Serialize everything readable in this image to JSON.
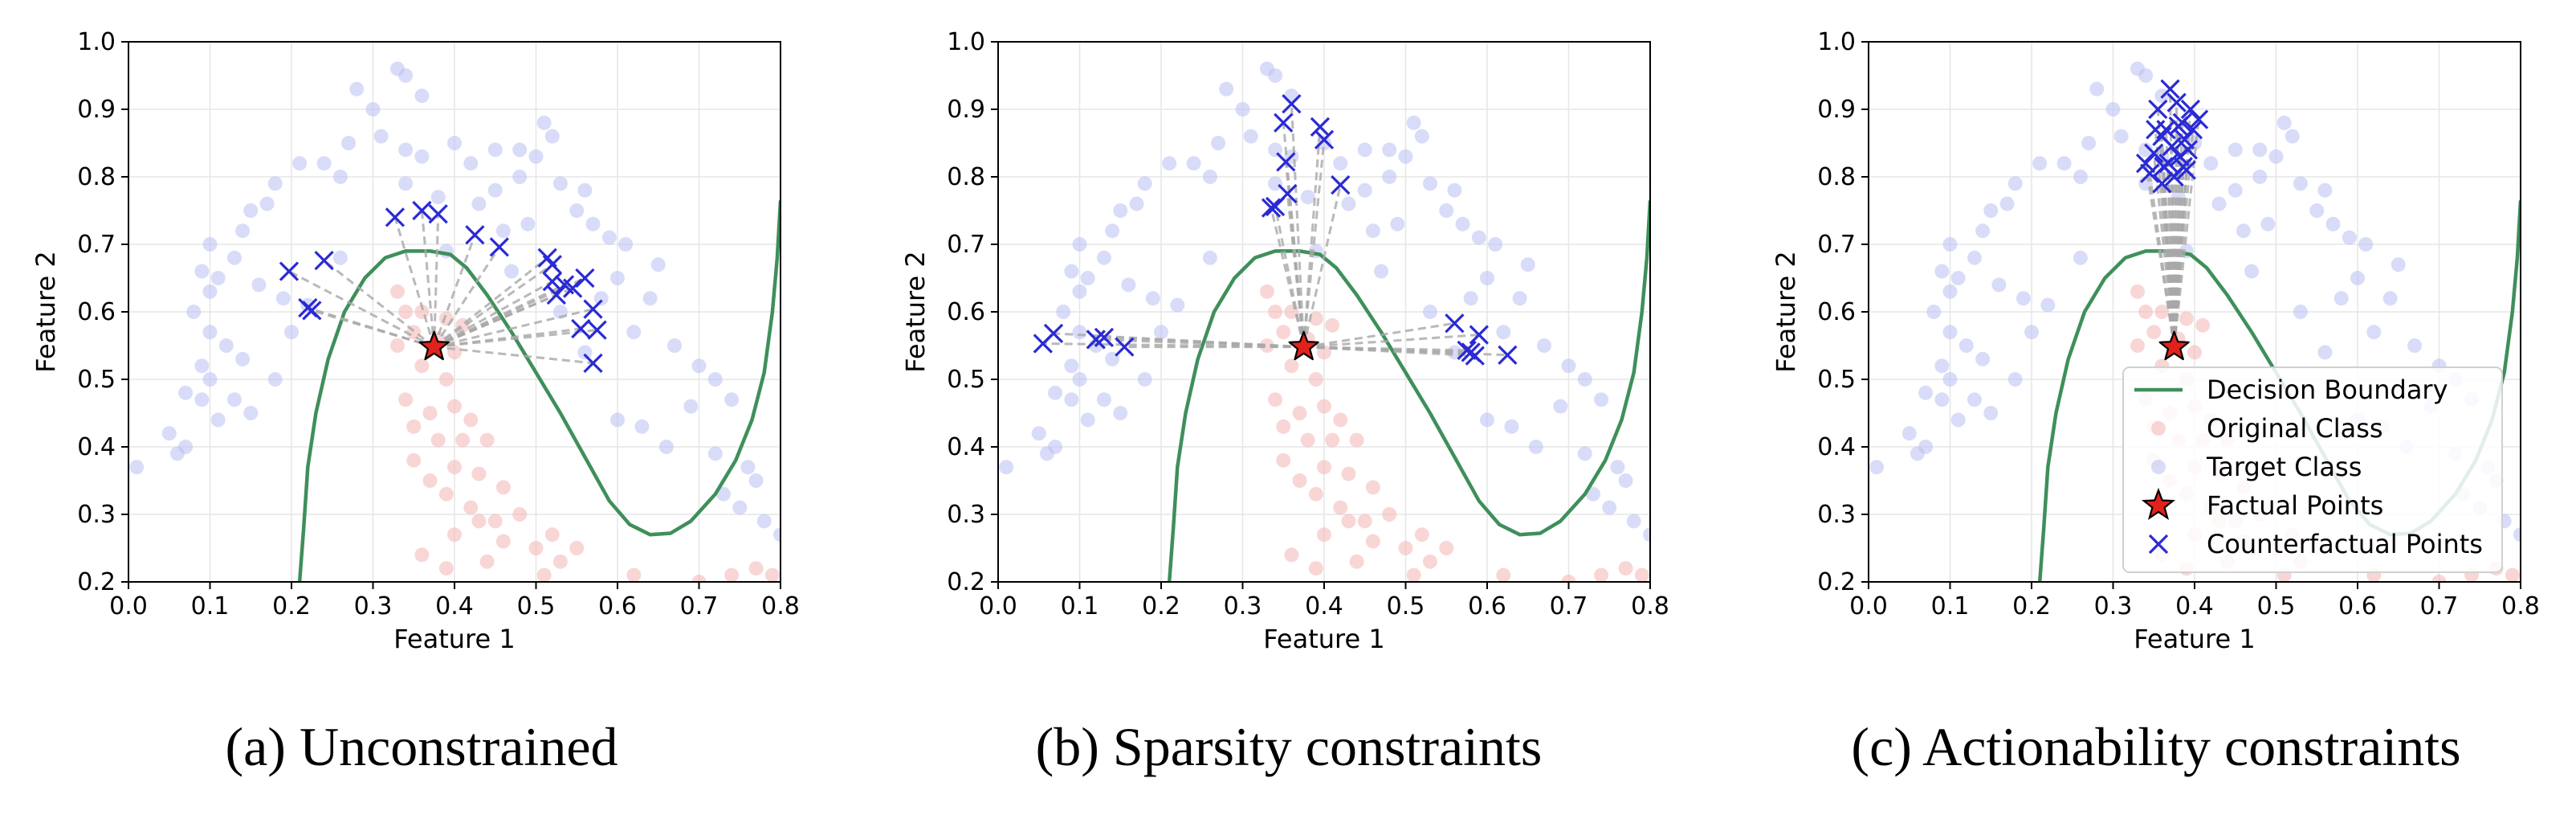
{
  "captions": [
    "(a) Unconstrained",
    "(b) Sparsity constraints",
    "(c) Actionability constraints"
  ],
  "colors": {
    "boundary": "#3f8f5a",
    "original": "#f4b4b4",
    "target": "#b9bff2",
    "factual": "#e3211c",
    "counterfactual": "#2a2ad6",
    "connector": "#a8a8a8"
  },
  "shared": {
    "xlabel": "Feature 1",
    "ylabel": "Feature 2",
    "xlim": [
      0.0,
      0.8
    ],
    "ylim": [
      0.2,
      1.0
    ],
    "xticks": [
      "0.0",
      "0.1",
      "0.2",
      "0.3",
      "0.4",
      "0.5",
      "0.6",
      "0.7",
      "0.8"
    ],
    "yticks": [
      "0.2",
      "0.3",
      "0.4",
      "0.5",
      "0.6",
      "0.7",
      "0.8",
      "0.9",
      "1.0"
    ],
    "grid": true,
    "boundary": [
      [
        0.21,
        0.2
      ],
      [
        0.215,
        0.28
      ],
      [
        0.22,
        0.37
      ],
      [
        0.23,
        0.45
      ],
      [
        0.245,
        0.53
      ],
      [
        0.265,
        0.6
      ],
      [
        0.29,
        0.65
      ],
      [
        0.315,
        0.68
      ],
      [
        0.34,
        0.69
      ],
      [
        0.37,
        0.69
      ],
      [
        0.395,
        0.685
      ],
      [
        0.415,
        0.665
      ],
      [
        0.44,
        0.625
      ],
      [
        0.47,
        0.57
      ],
      [
        0.5,
        0.51
      ],
      [
        0.53,
        0.45
      ],
      [
        0.56,
        0.385
      ],
      [
        0.59,
        0.32
      ],
      [
        0.615,
        0.285
      ],
      [
        0.64,
        0.27
      ],
      [
        0.665,
        0.272
      ],
      [
        0.69,
        0.29
      ],
      [
        0.72,
        0.33
      ],
      [
        0.745,
        0.38
      ],
      [
        0.765,
        0.44
      ],
      [
        0.78,
        0.51
      ],
      [
        0.79,
        0.6
      ],
      [
        0.796,
        0.68
      ],
      [
        0.8,
        0.765
      ]
    ],
    "original_class": [
      [
        0.33,
        0.63
      ],
      [
        0.34,
        0.6
      ],
      [
        0.35,
        0.57
      ],
      [
        0.36,
        0.6
      ],
      [
        0.39,
        0.59
      ],
      [
        0.41,
        0.58
      ],
      [
        0.38,
        0.56
      ],
      [
        0.4,
        0.54
      ],
      [
        0.33,
        0.55
      ],
      [
        0.36,
        0.52
      ],
      [
        0.39,
        0.5
      ],
      [
        0.34,
        0.47
      ],
      [
        0.37,
        0.45
      ],
      [
        0.4,
        0.46
      ],
      [
        0.42,
        0.44
      ],
      [
        0.35,
        0.43
      ],
      [
        0.38,
        0.41
      ],
      [
        0.41,
        0.41
      ],
      [
        0.44,
        0.41
      ],
      [
        0.35,
        0.38
      ],
      [
        0.37,
        0.35
      ],
      [
        0.4,
        0.37
      ],
      [
        0.43,
        0.36
      ],
      [
        0.46,
        0.34
      ],
      [
        0.39,
        0.33
      ],
      [
        0.42,
        0.31
      ],
      [
        0.45,
        0.29
      ],
      [
        0.48,
        0.3
      ],
      [
        0.52,
        0.27
      ],
      [
        0.5,
        0.25
      ],
      [
        0.55,
        0.25
      ],
      [
        0.53,
        0.23
      ],
      [
        0.4,
        0.27
      ],
      [
        0.36,
        0.24
      ],
      [
        0.39,
        0.22
      ],
      [
        0.44,
        0.23
      ],
      [
        0.46,
        0.26
      ],
      [
        0.43,
        0.29
      ],
      [
        0.51,
        0.21
      ],
      [
        0.62,
        0.21
      ],
      [
        0.74,
        0.21
      ],
      [
        0.77,
        0.22
      ],
      [
        0.79,
        0.21
      ],
      [
        0.7,
        0.2
      ]
    ],
    "target_class": [
      [
        0.33,
        0.96
      ],
      [
        0.34,
        0.95
      ],
      [
        0.28,
        0.93
      ],
      [
        0.36,
        0.92
      ],
      [
        0.3,
        0.9
      ],
      [
        0.31,
        0.86
      ],
      [
        0.27,
        0.85
      ],
      [
        0.24,
        0.82
      ],
      [
        0.21,
        0.82
      ],
      [
        0.26,
        0.8
      ],
      [
        0.34,
        0.84
      ],
      [
        0.36,
        0.83
      ],
      [
        0.4,
        0.85
      ],
      [
        0.42,
        0.82
      ],
      [
        0.45,
        0.84
      ],
      [
        0.48,
        0.84
      ],
      [
        0.51,
        0.88
      ],
      [
        0.52,
        0.86
      ],
      [
        0.5,
        0.83
      ],
      [
        0.48,
        0.8
      ],
      [
        0.53,
        0.79
      ],
      [
        0.56,
        0.78
      ],
      [
        0.55,
        0.75
      ],
      [
        0.57,
        0.73
      ],
      [
        0.45,
        0.78
      ],
      [
        0.43,
        0.76
      ],
      [
        0.38,
        0.77
      ],
      [
        0.34,
        0.79
      ],
      [
        0.18,
        0.79
      ],
      [
        0.17,
        0.76
      ],
      [
        0.15,
        0.75
      ],
      [
        0.14,
        0.72
      ],
      [
        0.1,
        0.7
      ],
      [
        0.09,
        0.66
      ],
      [
        0.11,
        0.65
      ],
      [
        0.1,
        0.63
      ],
      [
        0.13,
        0.68
      ],
      [
        0.16,
        0.64
      ],
      [
        0.19,
        0.62
      ],
      [
        0.08,
        0.6
      ],
      [
        0.1,
        0.57
      ],
      [
        0.12,
        0.55
      ],
      [
        0.09,
        0.52
      ],
      [
        0.1,
        0.5
      ],
      [
        0.14,
        0.53
      ],
      [
        0.07,
        0.48
      ],
      [
        0.09,
        0.47
      ],
      [
        0.13,
        0.47
      ],
      [
        0.05,
        0.42
      ],
      [
        0.07,
        0.4
      ],
      [
        0.06,
        0.39
      ],
      [
        0.11,
        0.44
      ],
      [
        0.15,
        0.45
      ],
      [
        0.18,
        0.5
      ],
      [
        0.2,
        0.57
      ],
      [
        0.22,
        0.61
      ],
      [
        0.26,
        0.68
      ],
      [
        0.59,
        0.71
      ],
      [
        0.61,
        0.7
      ],
      [
        0.65,
        0.67
      ],
      [
        0.6,
        0.65
      ],
      [
        0.64,
        0.62
      ],
      [
        0.58,
        0.62
      ],
      [
        0.62,
        0.57
      ],
      [
        0.67,
        0.55
      ],
      [
        0.7,
        0.52
      ],
      [
        0.72,
        0.5
      ],
      [
        0.74,
        0.47
      ],
      [
        0.69,
        0.46
      ],
      [
        0.6,
        0.44
      ],
      [
        0.63,
        0.43
      ],
      [
        0.66,
        0.4
      ],
      [
        0.72,
        0.39
      ],
      [
        0.76,
        0.37
      ],
      [
        0.73,
        0.33
      ],
      [
        0.75,
        0.31
      ],
      [
        0.78,
        0.29
      ],
      [
        0.8,
        0.27
      ],
      [
        0.77,
        0.35
      ],
      [
        0.01,
        0.37
      ],
      [
        0.53,
        0.6
      ],
      [
        0.56,
        0.54
      ],
      [
        0.47,
        0.66
      ],
      [
        0.49,
        0.73
      ],
      [
        0.46,
        0.72
      ],
      [
        0.39,
        0.69
      ]
    ],
    "factual_point": [
      0.375,
      0.548
    ],
    "legend": {
      "placement": "lower-right",
      "entries": [
        "Decision Boundary",
        "Original Class",
        "Target Class",
        "Factual Points",
        "Counterfactual Points"
      ]
    }
  },
  "chart_data": [
    {
      "type": "scatter",
      "xlabel": "Feature 1",
      "ylabel": "Feature 2",
      "xlim": [
        0.0,
        0.8
      ],
      "ylim": [
        0.2,
        1.0
      ],
      "counterfactuals": [
        [
          0.197,
          0.66
        ],
        [
          0.24,
          0.676
        ],
        [
          0.22,
          0.606
        ],
        [
          0.225,
          0.602
        ],
        [
          0.327,
          0.74
        ],
        [
          0.36,
          0.75
        ],
        [
          0.38,
          0.745
        ],
        [
          0.425,
          0.714
        ],
        [
          0.455,
          0.696
        ],
        [
          0.514,
          0.68
        ],
        [
          0.52,
          0.67
        ],
        [
          0.52,
          0.645
        ],
        [
          0.525,
          0.625
        ],
        [
          0.535,
          0.64
        ],
        [
          0.545,
          0.635
        ],
        [
          0.56,
          0.65
        ],
        [
          0.57,
          0.604
        ],
        [
          0.555,
          0.575
        ],
        [
          0.575,
          0.573
        ],
        [
          0.57,
          0.524
        ]
      ]
    },
    {
      "type": "scatter",
      "xlabel": "Feature 1",
      "ylabel": "Feature 2",
      "xlim": [
        0.0,
        0.8
      ],
      "ylim": [
        0.2,
        1.0
      ],
      "counterfactuals": [
        [
          0.055,
          0.553
        ],
        [
          0.068,
          0.568
        ],
        [
          0.12,
          0.559
        ],
        [
          0.13,
          0.562
        ],
        [
          0.155,
          0.548
        ],
        [
          0.335,
          0.754
        ],
        [
          0.34,
          0.756
        ],
        [
          0.35,
          0.88
        ],
        [
          0.353,
          0.822
        ],
        [
          0.355,
          0.775
        ],
        [
          0.36,
          0.908
        ],
        [
          0.395,
          0.874
        ],
        [
          0.4,
          0.855
        ],
        [
          0.42,
          0.788
        ],
        [
          0.56,
          0.583
        ],
        [
          0.575,
          0.543
        ],
        [
          0.58,
          0.54
        ],
        [
          0.585,
          0.535
        ],
        [
          0.59,
          0.566
        ],
        [
          0.625,
          0.536
        ]
      ]
    },
    {
      "type": "scatter",
      "xlabel": "Feature 1",
      "ylabel": "Feature 2",
      "xlim": [
        0.0,
        0.8
      ],
      "ylim": [
        0.2,
        1.0
      ],
      "counterfactuals": [
        [
          0.34,
          0.82
        ],
        [
          0.345,
          0.805
        ],
        [
          0.35,
          0.835
        ],
        [
          0.355,
          0.9
        ],
        [
          0.36,
          0.86
        ],
        [
          0.362,
          0.815
        ],
        [
          0.365,
          0.87
        ],
        [
          0.37,
          0.93
        ],
        [
          0.372,
          0.845
        ],
        [
          0.375,
          0.8
        ],
        [
          0.378,
          0.91
        ],
        [
          0.38,
          0.875
        ],
        [
          0.382,
          0.83
        ],
        [
          0.385,
          0.88
        ],
        [
          0.388,
          0.855
        ],
        [
          0.39,
          0.81
        ],
        [
          0.392,
          0.84
        ],
        [
          0.395,
          0.9
        ],
        [
          0.398,
          0.87
        ],
        [
          0.405,
          0.885
        ],
        [
          0.352,
          0.87
        ],
        [
          0.368,
          0.82
        ],
        [
          0.386,
          0.815
        ],
        [
          0.36,
          0.79
        ]
      ]
    }
  ]
}
